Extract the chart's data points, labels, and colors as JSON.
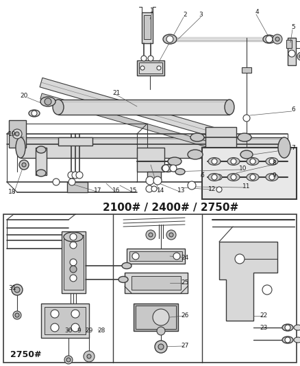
{
  "bg_color": "#ffffff",
  "line_color": "#3a3a3a",
  "text_color": "#1a1a1a",
  "fig_width": 4.38,
  "fig_height": 5.33,
  "main_label": "2100# / 2400# / 2750#",
  "sub_label_left": "2750#",
  "gray1": "#c8c8c8",
  "gray2": "#d8d8d8",
  "gray3": "#b0b0b0",
  "gray4": "#e8e8e8"
}
